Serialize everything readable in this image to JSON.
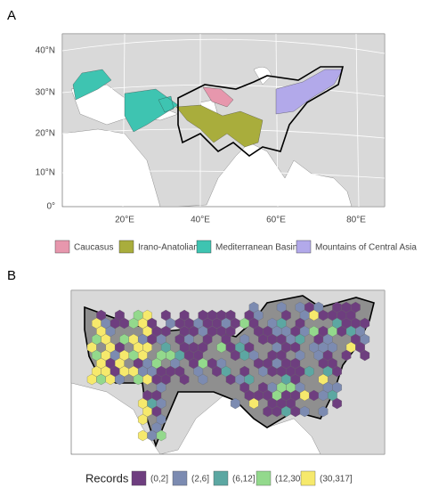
{
  "panels": [
    {
      "label": "A",
      "lat_labels": [
        "40°N",
        "30°N",
        "20°N",
        "10°N",
        "0°"
      ],
      "lon_labels": [
        "20°E",
        "40°E",
        "60°E",
        "80°E"
      ],
      "legend": [
        {
          "name": "Caucasus",
          "color": "#e797ad"
        },
        {
          "name": "Irano-Anatolian",
          "color": "#a9ad3c"
        },
        {
          "name": "Mediterranean Basin",
          "color": "#3ec4b1"
        },
        {
          "name": "Mountains of Central Asia",
          "color": "#b2a9ea"
        }
      ]
    },
    {
      "label": "B",
      "legend_title": "Records",
      "legend": [
        {
          "name": "(0,2]",
          "color": "#6e3e7f"
        },
        {
          "name": "(2,6]",
          "color": "#7c8bb1"
        },
        {
          "name": "(6,12]",
          "color": "#5ca7a2"
        },
        {
          "name": "(12,30]",
          "color": "#93d98c"
        },
        {
          "name": "(30,317]",
          "color": "#f6e96c"
        }
      ]
    }
  ]
}
